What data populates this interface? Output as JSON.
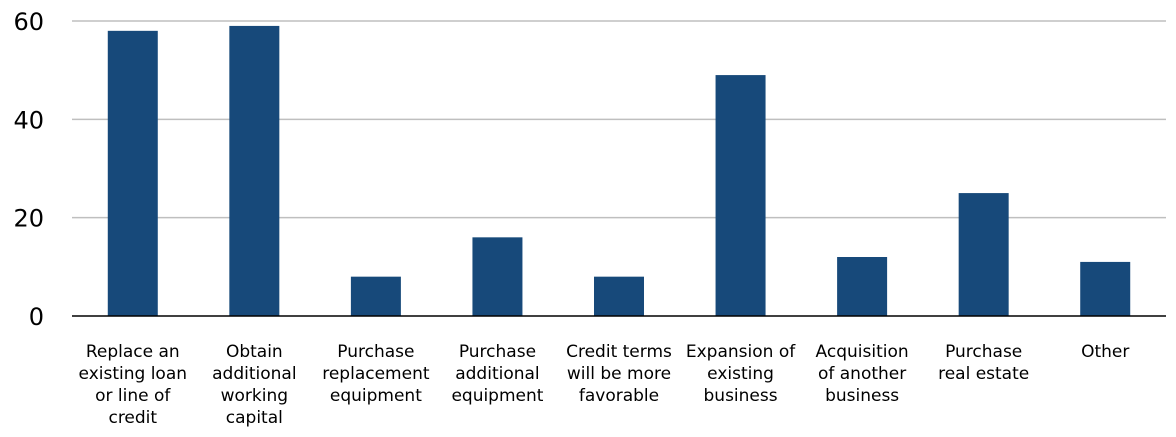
{
  "colors": {
    "bar": "#17497a",
    "grid": "#bfbfbf",
    "axis": "#000000"
  },
  "chart_data": {
    "type": "bar",
    "categories": [
      [
        "Replace an",
        "existing loan",
        "or line of",
        "credit"
      ],
      [
        "Obtain",
        "additional",
        "working",
        "capital"
      ],
      [
        "Purchase",
        "replacement",
        "equipment"
      ],
      [
        "Purchase",
        "additional",
        "equipment"
      ],
      [
        "Credit terms",
        "will be more",
        "favorable"
      ],
      [
        "Expansion of",
        "existing",
        "business"
      ],
      [
        "Acquisition",
        "of another",
        "business"
      ],
      [
        "Purchase",
        "real estate"
      ],
      [
        "Other"
      ]
    ],
    "values": [
      58,
      59,
      8,
      16,
      8,
      49,
      12,
      25,
      11
    ],
    "yticks": [
      "0",
      "20",
      "40",
      "60"
    ],
    "ylim": [
      0,
      60
    ],
    "grid": true,
    "legend": "none"
  }
}
